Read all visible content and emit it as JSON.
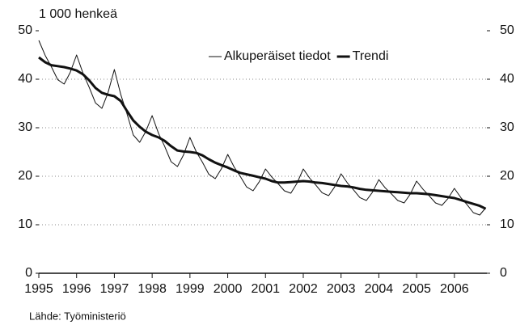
{
  "chart_data": {
    "type": "line",
    "y_label": "1 000 henkeä",
    "source": "Lähde: Työministeriö",
    "x": [
      1995,
      1995.17,
      1995.33,
      1995.5,
      1995.67,
      1995.83,
      1996,
      1996.17,
      1996.33,
      1996.5,
      1996.67,
      1996.83,
      1997,
      1997.17,
      1997.33,
      1997.5,
      1997.67,
      1997.83,
      1998,
      1998.17,
      1998.33,
      1998.5,
      1998.67,
      1998.83,
      1999,
      1999.17,
      1999.33,
      1999.5,
      1999.67,
      1999.83,
      2000,
      2000.17,
      2000.33,
      2000.5,
      2000.67,
      2000.83,
      2001,
      2001.17,
      2001.33,
      2001.5,
      2001.67,
      2001.83,
      2002,
      2002.17,
      2002.33,
      2002.5,
      2002.67,
      2002.83,
      2003,
      2003.17,
      2003.33,
      2003.5,
      2003.67,
      2003.83,
      2004,
      2004.17,
      2004.33,
      2004.5,
      2004.67,
      2004.83,
      2005,
      2005.17,
      2005.33,
      2005.5,
      2005.67,
      2005.83,
      2006,
      2006.17,
      2006.33,
      2006.5,
      2006.67,
      2006.83
    ],
    "series": [
      {
        "name": "Alkuperäiset tiedot",
        "color": "#111111",
        "width": 1,
        "values": [
          48,
          44.9,
          42.6,
          39.9,
          39,
          41.4,
          45,
          41.2,
          38.4,
          35.1,
          34,
          37.2,
          42,
          36.8,
          33,
          28.5,
          27,
          29.2,
          32.5,
          28.8,
          26.2,
          23,
          22,
          24.4,
          28,
          25,
          22.9,
          20.4,
          19.5,
          21.5,
          24.5,
          21.9,
          20,
          17.8,
          17,
          18.8,
          21.5,
          19.8,
          18.5,
          17,
          16.5,
          18.5,
          21.5,
          19.6,
          18.2,
          16.6,
          16,
          17.8,
          20.5,
          18.6,
          17.2,
          15.6,
          15,
          16.7,
          19.3,
          17.6,
          16.4,
          15,
          14.5,
          16.3,
          19,
          17.3,
          16,
          14.5,
          14,
          15.4,
          17.5,
          15.6,
          14.2,
          12.5,
          12,
          13.5
        ]
      },
      {
        "name": "Trendi",
        "color": "#111111",
        "width": 3,
        "values": [
          44.5,
          43.5,
          42.9,
          42.7,
          42.5,
          42.2,
          41.8,
          41,
          39.8,
          38.2,
          37.2,
          36.8,
          36.5,
          35.5,
          33.5,
          31.5,
          30.2,
          29.2,
          28.5,
          28,
          27.3,
          26.2,
          25.3,
          25.1,
          25,
          24.8,
          24.3,
          23.5,
          22.8,
          22.3,
          21.8,
          21.2,
          20.7,
          20.4,
          20.1,
          19.8,
          19.5,
          19,
          18.7,
          18.7,
          18.8,
          18.9,
          19,
          18.9,
          18.7,
          18.6,
          18.4,
          18.2,
          18,
          17.9,
          17.7,
          17.4,
          17.2,
          17.1,
          17,
          16.9,
          16.8,
          16.7,
          16.6,
          16.5,
          16.5,
          16.4,
          16.3,
          16.1,
          15.9,
          15.7,
          15.5,
          15.1,
          14.7,
          14.3,
          13.9,
          13.3
        ]
      }
    ],
    "xlim": [
      1995,
      2006.86
    ],
    "xticks": [
      1995,
      1996,
      1997,
      1998,
      1999,
      2000,
      2001,
      2002,
      2003,
      2004,
      2005,
      2006
    ],
    "ylim": [
      0,
      50
    ],
    "yticks": [
      0,
      10,
      20,
      30,
      40,
      50
    ],
    "grid": true,
    "legend": "top-right"
  }
}
